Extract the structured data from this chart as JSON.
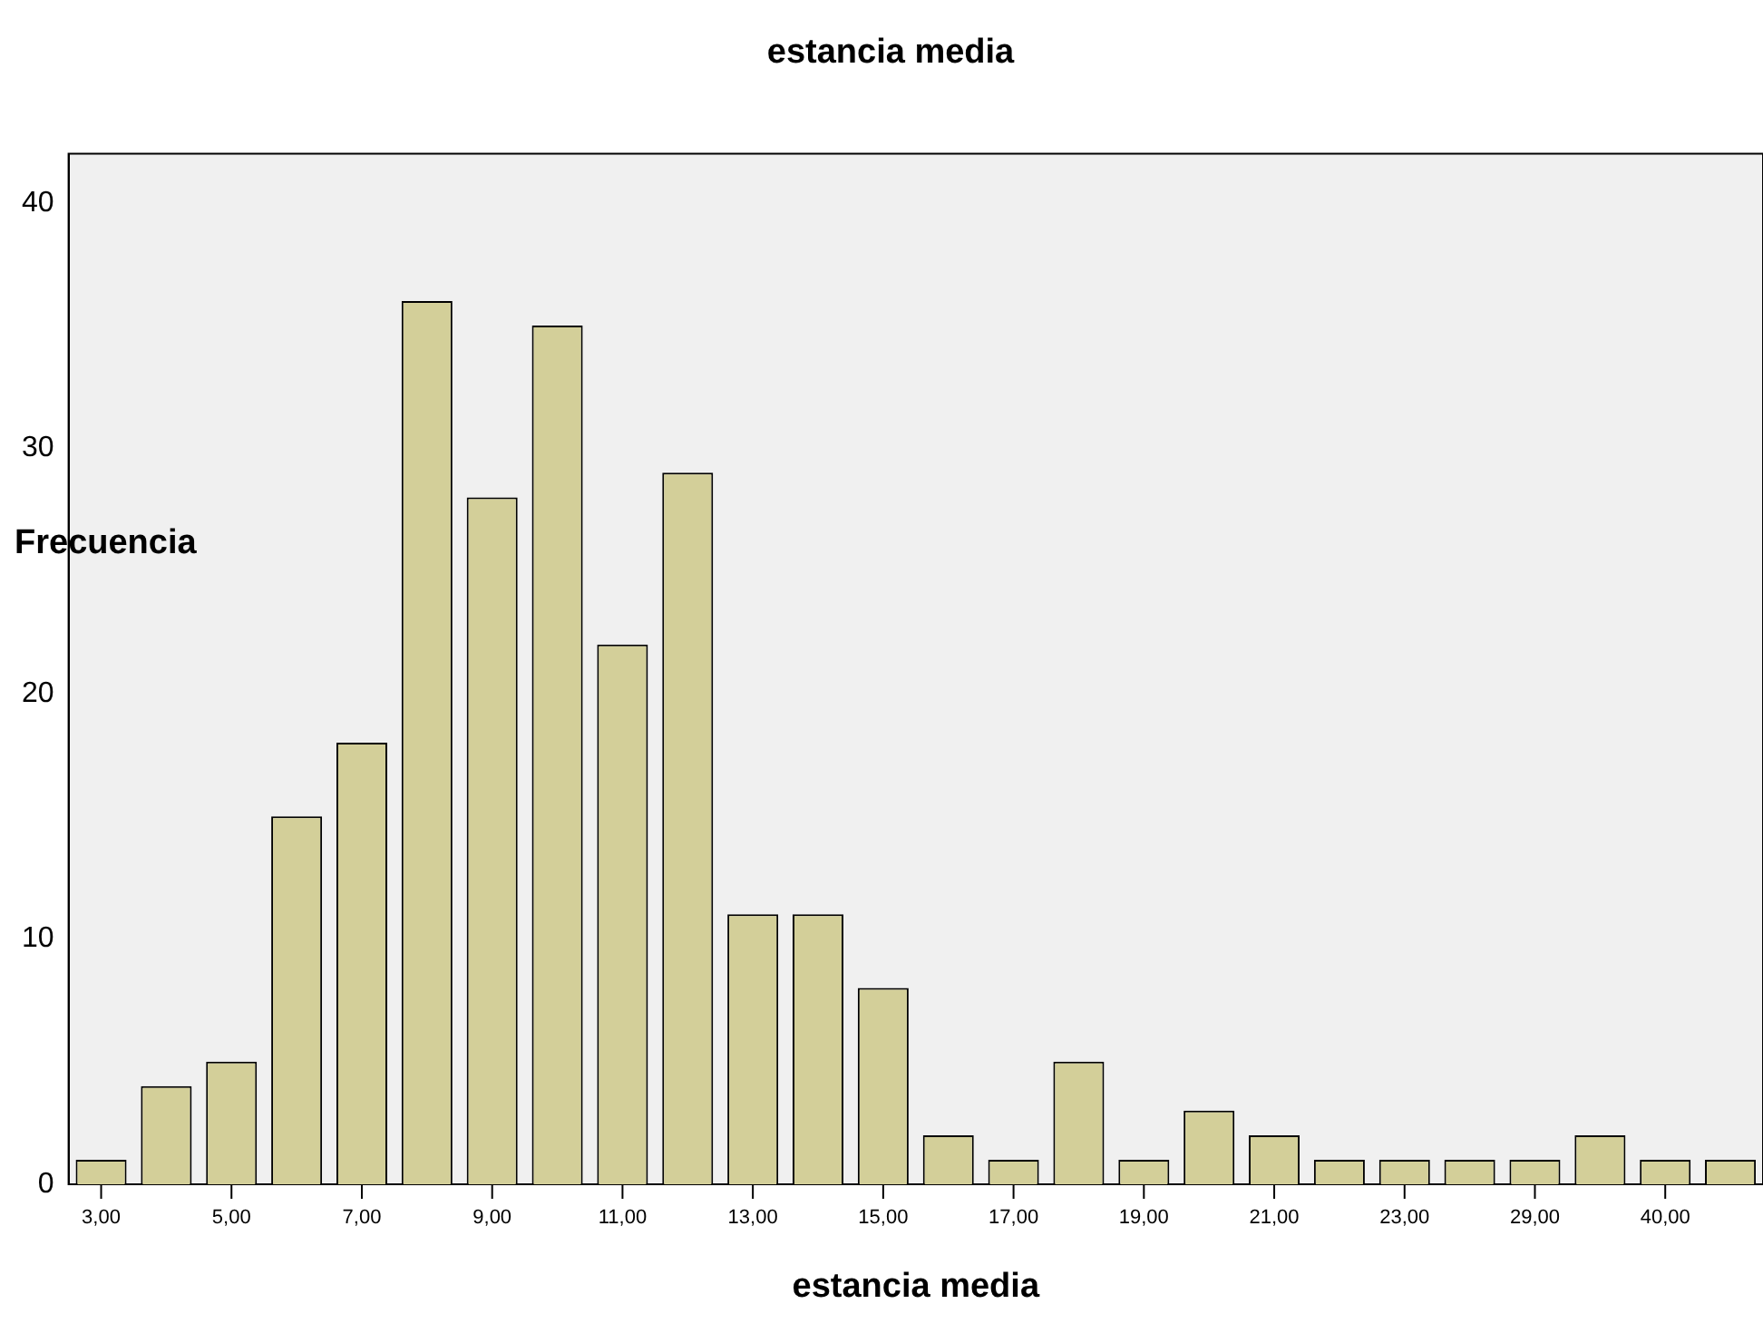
{
  "chart_data": {
    "type": "bar",
    "title": "estancia media",
    "xlabel": "estancia media",
    "ylabel": "Frecuencia",
    "categories": [
      "3,00",
      null,
      "5,00",
      null,
      "7,00",
      null,
      "9,00",
      null,
      "11,00",
      null,
      "13,00",
      null,
      "15,00",
      null,
      "17,00",
      null,
      "19,00",
      null,
      "21,00",
      null,
      "23,00",
      null,
      "29,00",
      null,
      "40,00",
      null
    ],
    "values": [
      1,
      4,
      5,
      15,
      18,
      36,
      28,
      35,
      22,
      29,
      11,
      11,
      8,
      2,
      1,
      5,
      1,
      3,
      2,
      1,
      1,
      1,
      1,
      2,
      1,
      1
    ],
    "color": "#d3cf99",
    "ylim": [
      0,
      42
    ],
    "yticks": [
      0,
      10,
      20,
      30,
      40
    ],
    "grid": false,
    "legend": false
  }
}
